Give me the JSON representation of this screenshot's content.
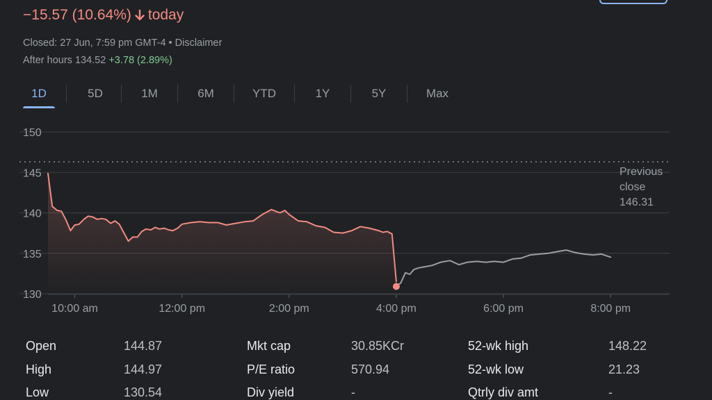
{
  "header": {
    "change_text": "−15.57 (10.64%)",
    "today_label": "today",
    "closed_text": "Closed: 27 Jun, 7:59 pm GMT-4 • Disclaimer",
    "after_hours_label": "After hours 134.52",
    "after_hours_change": "+3.78 (2.89%)",
    "arrow_icon": "arrow-down-icon"
  },
  "tabs": [
    "1D",
    "5D",
    "1M",
    "6M",
    "YTD",
    "1Y",
    "5Y",
    "Max"
  ],
  "active_tab": "1D",
  "colors": {
    "negative": "#f28b82",
    "positive": "#81c995",
    "after_hours_line": "#9aa0a6",
    "accent": "#8ab4f8",
    "background": "#202124"
  },
  "chart_data": {
    "type": "line",
    "y_ticks": [
      130,
      135,
      140,
      145,
      150
    ],
    "ylim": [
      130,
      150
    ],
    "x_tick_labels": [
      "10:00 am",
      "12:00 pm",
      "2:00 pm",
      "4:00 pm",
      "6:00 pm",
      "8:00 pm"
    ],
    "x_tick_hours": [
      10,
      12,
      14,
      16,
      18,
      20
    ],
    "xlim": [
      9.5,
      21.1
    ],
    "reference_line": {
      "label": [
        "Previous",
        "close",
        "146.31"
      ],
      "value": 146.31
    },
    "series": [
      {
        "segment": "regular",
        "x": [
          9.5,
          9.58,
          9.67,
          9.75,
          9.83,
          9.92,
          10.0,
          10.08,
          10.17,
          10.25,
          10.33,
          10.42,
          10.5,
          10.58,
          10.67,
          10.75,
          10.83,
          10.92,
          11.0,
          11.08,
          11.17,
          11.25,
          11.33,
          11.42,
          11.5,
          11.58,
          11.67,
          11.75,
          11.83,
          11.92,
          12.0,
          12.17,
          12.33,
          12.5,
          12.67,
          12.83,
          13.0,
          13.17,
          13.33,
          13.5,
          13.67,
          13.83,
          13.92,
          14.0,
          14.17,
          14.33,
          14.5,
          14.67,
          14.83,
          15.0,
          15.17,
          15.33,
          15.5,
          15.67,
          15.75,
          15.83,
          15.92,
          16.0
        ],
        "values": [
          144.87,
          140.8,
          140.3,
          140.2,
          139.2,
          137.8,
          138.5,
          138.6,
          139.2,
          139.6,
          139.5,
          139.2,
          139.3,
          139.2,
          138.7,
          139.0,
          138.6,
          137.5,
          136.5,
          137.0,
          137.0,
          137.7,
          138.0,
          137.9,
          138.2,
          138.0,
          138.1,
          137.9,
          137.8,
          138.1,
          138.6,
          138.8,
          138.9,
          138.8,
          138.8,
          138.5,
          138.7,
          138.9,
          139.0,
          139.8,
          140.4,
          140.0,
          140.3,
          139.8,
          139.0,
          138.9,
          138.4,
          138.2,
          137.6,
          137.5,
          137.8,
          138.3,
          138.1,
          137.8,
          137.6,
          137.7,
          137.4,
          131.5
        ]
      },
      {
        "segment": "after-hours",
        "x": [
          16.0,
          16.08,
          16.17,
          16.25,
          16.33,
          16.42,
          16.5,
          16.67,
          16.83,
          17.0,
          17.17,
          17.33,
          17.5,
          17.67,
          17.83,
          18.0,
          18.17,
          18.33,
          18.5,
          18.67,
          18.83,
          19.0,
          19.17,
          19.33,
          19.5,
          19.67,
          19.83,
          20.0
        ],
        "values": [
          131.0,
          131.3,
          132.6,
          132.4,
          133.0,
          133.2,
          133.3,
          133.5,
          133.9,
          134.1,
          133.6,
          133.9,
          134.0,
          133.9,
          134.0,
          133.9,
          134.3,
          134.4,
          134.8,
          134.9,
          135.0,
          135.2,
          135.4,
          135.1,
          134.9,
          134.8,
          134.9,
          134.52
        ]
      }
    ],
    "marker": {
      "x": 16.0,
      "value": 130.9
    }
  },
  "stats": [
    {
      "label": "Open",
      "value": "144.87"
    },
    {
      "label": "High",
      "value": "144.97"
    },
    {
      "label": "Low",
      "value": "130.54"
    },
    {
      "label": "Mkt cap",
      "value": "30.85KCr"
    },
    {
      "label": "P/E ratio",
      "value": "570.94"
    },
    {
      "label": "Div yield",
      "value": "-"
    },
    {
      "label": "52-wk high",
      "value": "148.22"
    },
    {
      "label": "52-wk low",
      "value": "21.23"
    },
    {
      "label": "Qtrly div amt",
      "value": "-"
    }
  ]
}
